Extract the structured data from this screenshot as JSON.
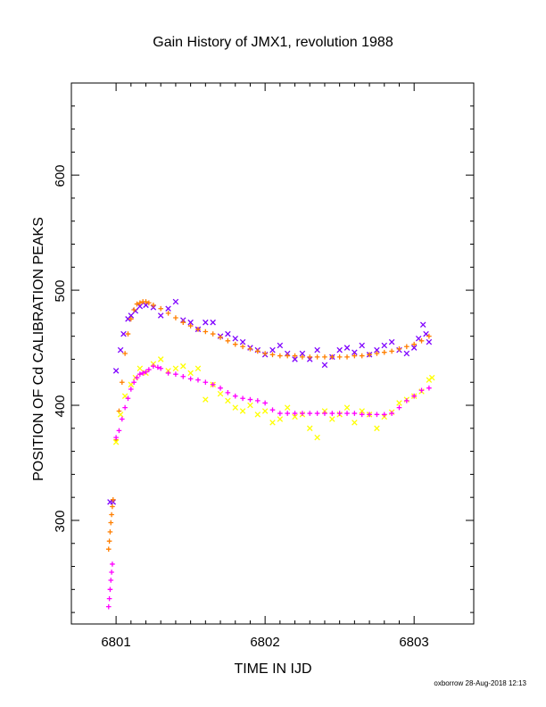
{
  "chart_data": {
    "type": "scatter",
    "title": "Gain History of JMX1, revolution 1988",
    "xlabel": "TIME IN IJD",
    "ylabel": "POSITION OF Cd CALIBRATION PEAKS",
    "xlim": [
      6800.7,
      6803.4
    ],
    "ylim": [
      210,
      680
    ],
    "x_ticks": [
      "6801",
      "6802",
      "6803"
    ],
    "y_ticks": [
      "300",
      "400",
      "500",
      "600"
    ],
    "grid": false,
    "legend": "none",
    "series": [
      {
        "marker": "x",
        "color": "#7f00ff",
        "points": [
          [
            6800.96,
            316
          ],
          [
            6800.98,
            316
          ],
          [
            6801.0,
            430
          ],
          [
            6801.03,
            448
          ],
          [
            6801.05,
            462
          ],
          [
            6801.08,
            475
          ],
          [
            6801.1,
            478
          ],
          [
            6801.13,
            482
          ],
          [
            6801.16,
            486
          ],
          [
            6801.2,
            487
          ],
          [
            6801.25,
            485
          ],
          [
            6801.3,
            478
          ],
          [
            6801.35,
            484
          ],
          [
            6801.4,
            490
          ],
          [
            6801.45,
            474
          ],
          [
            6801.5,
            472
          ],
          [
            6801.55,
            466
          ],
          [
            6801.6,
            472
          ],
          [
            6801.65,
            472
          ],
          [
            6801.7,
            460
          ],
          [
            6801.75,
            462
          ],
          [
            6801.8,
            458
          ],
          [
            6801.85,
            455
          ],
          [
            6801.9,
            450
          ],
          [
            6801.95,
            448
          ],
          [
            6802.0,
            444
          ],
          [
            6802.05,
            448
          ],
          [
            6802.1,
            452
          ],
          [
            6802.15,
            445
          ],
          [
            6802.2,
            440
          ],
          [
            6802.25,
            445
          ],
          [
            6802.3,
            440
          ],
          [
            6802.35,
            448
          ],
          [
            6802.4,
            435
          ],
          [
            6802.45,
            442
          ],
          [
            6802.5,
            448
          ],
          [
            6802.55,
            450
          ],
          [
            6802.6,
            446
          ],
          [
            6802.65,
            452
          ],
          [
            6802.7,
            444
          ],
          [
            6802.75,
            448
          ],
          [
            6802.8,
            452
          ],
          [
            6802.85,
            455
          ],
          [
            6802.9,
            448
          ],
          [
            6802.95,
            445
          ],
          [
            6803.0,
            450
          ],
          [
            6803.03,
            458
          ],
          [
            6803.06,
            470
          ],
          [
            6803.08,
            462
          ],
          [
            6803.1,
            455
          ]
        ]
      },
      {
        "marker": "+",
        "color": "#ff7f00",
        "points": [
          [
            6800.95,
            275
          ],
          [
            6800.955,
            282
          ],
          [
            6800.96,
            290
          ],
          [
            6800.965,
            298
          ],
          [
            6800.97,
            305
          ],
          [
            6800.975,
            312
          ],
          [
            6800.98,
            318
          ],
          [
            6801.0,
            370
          ],
          [
            6801.02,
            395
          ],
          [
            6801.04,
            420
          ],
          [
            6801.06,
            445
          ],
          [
            6801.08,
            462
          ],
          [
            6801.1,
            475
          ],
          [
            6801.12,
            483
          ],
          [
            6801.14,
            488
          ],
          [
            6801.16,
            489
          ],
          [
            6801.18,
            490
          ],
          [
            6801.2,
            490
          ],
          [
            6801.22,
            489
          ],
          [
            6801.25,
            487
          ],
          [
            6801.3,
            484
          ],
          [
            6801.35,
            480
          ],
          [
            6801.4,
            476
          ],
          [
            6801.45,
            472
          ],
          [
            6801.5,
            469
          ],
          [
            6801.55,
            466
          ],
          [
            6801.6,
            464
          ],
          [
            6801.65,
            462
          ],
          [
            6801.7,
            459
          ],
          [
            6801.75,
            456
          ],
          [
            6801.8,
            453
          ],
          [
            6801.85,
            451
          ],
          [
            6801.9,
            449
          ],
          [
            6801.95,
            447
          ],
          [
            6802.0,
            445
          ],
          [
            6802.05,
            444
          ],
          [
            6802.1,
            443
          ],
          [
            6802.15,
            443
          ],
          [
            6802.2,
            443
          ],
          [
            6802.25,
            442
          ],
          [
            6802.3,
            442
          ],
          [
            6802.35,
            442
          ],
          [
            6802.4,
            442
          ],
          [
            6802.45,
            442
          ],
          [
            6802.5,
            442
          ],
          [
            6802.55,
            442
          ],
          [
            6802.6,
            443
          ],
          [
            6802.65,
            443
          ],
          [
            6802.7,
            444
          ],
          [
            6802.75,
            445
          ],
          [
            6802.8,
            446
          ],
          [
            6802.85,
            447
          ],
          [
            6802.9,
            449
          ],
          [
            6802.95,
            451
          ],
          [
            6803.0,
            453
          ],
          [
            6803.05,
            456
          ],
          [
            6803.1,
            460
          ]
        ]
      },
      {
        "marker": "x",
        "color": "#ffff00",
        "points": [
          [
            6801.0,
            368
          ],
          [
            6801.03,
            392
          ],
          [
            6801.06,
            408
          ],
          [
            6801.1,
            418
          ],
          [
            6801.13,
            424
          ],
          [
            6801.16,
            432
          ],
          [
            6801.2,
            428
          ],
          [
            6801.25,
            436
          ],
          [
            6801.3,
            440
          ],
          [
            6801.35,
            430
          ],
          [
            6801.4,
            432
          ],
          [
            6801.45,
            434
          ],
          [
            6801.5,
            428
          ],
          [
            6801.55,
            432
          ],
          [
            6801.6,
            405
          ],
          [
            6801.65,
            418
          ],
          [
            6801.7,
            410
          ],
          [
            6801.75,
            404
          ],
          [
            6801.8,
            398
          ],
          [
            6801.85,
            395
          ],
          [
            6801.9,
            400
          ],
          [
            6801.95,
            392
          ],
          [
            6802.0,
            395
          ],
          [
            6802.05,
            385
          ],
          [
            6802.1,
            388
          ],
          [
            6802.15,
            398
          ],
          [
            6802.2,
            390
          ],
          [
            6802.25,
            392
          ],
          [
            6802.3,
            380
          ],
          [
            6802.35,
            372
          ],
          [
            6802.4,
            395
          ],
          [
            6802.45,
            388
          ],
          [
            6802.5,
            392
          ],
          [
            6802.55,
            398
          ],
          [
            6802.6,
            385
          ],
          [
            6802.65,
            395
          ],
          [
            6802.7,
            392
          ],
          [
            6802.75,
            380
          ],
          [
            6802.8,
            390
          ],
          [
            6802.85,
            394
          ],
          [
            6802.9,
            402
          ],
          [
            6802.95,
            405
          ],
          [
            6803.0,
            408
          ],
          [
            6803.05,
            412
          ],
          [
            6803.1,
            422
          ],
          [
            6803.12,
            424
          ]
        ]
      },
      {
        "marker": "+",
        "color": "#ff00ff",
        "points": [
          [
            6800.95,
            225
          ],
          [
            6800.955,
            232
          ],
          [
            6800.96,
            240
          ],
          [
            6800.965,
            248
          ],
          [
            6800.97,
            255
          ],
          [
            6800.975,
            262
          ],
          [
            6801.0,
            372
          ],
          [
            6801.02,
            378
          ],
          [
            6801.04,
            388
          ],
          [
            6801.06,
            398
          ],
          [
            6801.08,
            406
          ],
          [
            6801.1,
            414
          ],
          [
            6801.12,
            420
          ],
          [
            6801.14,
            424
          ],
          [
            6801.16,
            427
          ],
          [
            6801.18,
            428
          ],
          [
            6801.2,
            429
          ],
          [
            6801.22,
            431
          ],
          [
            6801.25,
            434
          ],
          [
            6801.28,
            433
          ],
          [
            6801.3,
            432
          ],
          [
            6801.35,
            428
          ],
          [
            6801.4,
            427
          ],
          [
            6801.45,
            425
          ],
          [
            6801.5,
            423
          ],
          [
            6801.55,
            422
          ],
          [
            6801.6,
            420
          ],
          [
            6801.65,
            418
          ],
          [
            6801.7,
            415
          ],
          [
            6801.75,
            411
          ],
          [
            6801.8,
            408
          ],
          [
            6801.85,
            406
          ],
          [
            6801.9,
            405
          ],
          [
            6801.95,
            404
          ],
          [
            6802.0,
            402
          ],
          [
            6802.05,
            396
          ],
          [
            6802.1,
            393
          ],
          [
            6802.15,
            393
          ],
          [
            6802.2,
            393
          ],
          [
            6802.25,
            393
          ],
          [
            6802.3,
            393
          ],
          [
            6802.35,
            393
          ],
          [
            6802.4,
            393
          ],
          [
            6802.45,
            393
          ],
          [
            6802.5,
            393
          ],
          [
            6802.55,
            393
          ],
          [
            6802.6,
            393
          ],
          [
            6802.65,
            392
          ],
          [
            6802.7,
            392
          ],
          [
            6802.75,
            392
          ],
          [
            6802.8,
            392
          ],
          [
            6802.85,
            393
          ],
          [
            6802.9,
            398
          ],
          [
            6802.95,
            404
          ],
          [
            6803.0,
            408
          ],
          [
            6803.05,
            413
          ],
          [
            6803.1,
            415
          ]
        ]
      }
    ]
  },
  "footer": "oxborrow 28-Aug-2018 12:13"
}
